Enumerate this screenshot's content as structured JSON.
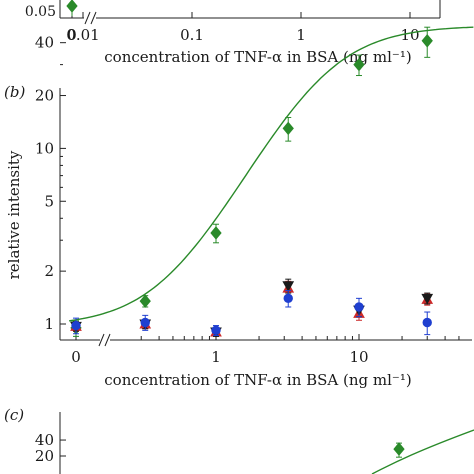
{
  "chart_data": [
    {
      "panel": "a",
      "type": "scatter",
      "xlabel": "concentration of TNF-α in BSA (ng ml⁻¹)",
      "ylabel": "",
      "xscale": "log with broken axis at zero",
      "yscale": "log",
      "xticks": [
        "0",
        "0.01",
        "0.1",
        "1",
        "10"
      ],
      "yticks": [
        "0.05"
      ],
      "series": [
        {
          "color": "#2a8a2a",
          "marker": "diamond",
          "points": [
            {
              "x": 0,
              "y": 0.05
            }
          ]
        }
      ]
    },
    {
      "panel": "b",
      "panel_label": "(b)",
      "type": "scatter",
      "xlabel": "concentration of TNF-α in BSA (ng ml⁻¹)",
      "ylabel": "relative intensity",
      "xscale": "log with broken axis at zero",
      "yscale": "log",
      "xticks": [
        "0",
        "1",
        "10"
      ],
      "yticks": [
        "1",
        "2",
        "5",
        "10",
        "20",
        "40"
      ],
      "ylim": [
        0.85,
        55
      ],
      "grid": false,
      "legend": "none",
      "series": [
        {
          "color": "#2a8a2a",
          "marker": "diamond",
          "fit": "sigmoid",
          "points": [
            {
              "x": 0,
              "y": 0.95,
              "err": 0.1
            },
            {
              "x": 0.32,
              "y": 1.35,
              "err": 0.1
            },
            {
              "x": 1,
              "y": 3.3,
              "err": 0.4
            },
            {
              "x": 3.2,
              "y": 13,
              "err": 2
            },
            {
              "x": 10,
              "y": 30,
              "err": 4
            },
            {
              "x": 30,
              "y": 41,
              "err": 8
            }
          ]
        },
        {
          "color": "#cc2a2a",
          "marker": "triangle-up",
          "points": [
            {
              "x": 0,
              "y": 0.97,
              "err": 0.06
            },
            {
              "x": 0.32,
              "y": 1.0,
              "err": 0.06
            },
            {
              "x": 1,
              "y": 0.9,
              "err": 0.05
            },
            {
              "x": 3.2,
              "y": 1.6,
              "err": 0.15
            },
            {
              "x": 10,
              "y": 1.15,
              "err": 0.1
            },
            {
              "x": 30,
              "y": 1.38,
              "err": 0.1
            }
          ]
        },
        {
          "color": "#1a1a1a",
          "marker": "triangle-down",
          "points": [
            {
              "x": 0,
              "y": 0.97,
              "err": 0.06
            },
            {
              "x": 0.32,
              "y": 1.0,
              "err": 0.06
            },
            {
              "x": 1,
              "y": 0.9,
              "err": 0.05
            },
            {
              "x": 3.2,
              "y": 1.65,
              "err": 0.15
            },
            {
              "x": 10,
              "y": 1.2,
              "err": 0.1
            },
            {
              "x": 30,
              "y": 1.4,
              "err": 0.1
            }
          ]
        },
        {
          "color": "#1f3fd0",
          "marker": "circle",
          "points": [
            {
              "x": 0,
              "y": 0.98,
              "err": 0.1
            },
            {
              "x": 0.32,
              "y": 1.02,
              "err": 0.1
            },
            {
              "x": 1,
              "y": 0.92,
              "err": 0.06
            },
            {
              "x": 3.2,
              "y": 1.4,
              "err": 0.15
            },
            {
              "x": 10,
              "y": 1.25,
              "err": 0.15
            },
            {
              "x": 30,
              "y": 1.02,
              "err": 0.15
            }
          ]
        }
      ]
    },
    {
      "panel": "c",
      "panel_label": "(c)",
      "type": "scatter",
      "yscale": "log",
      "yticks": [
        "20",
        "40"
      ],
      "series": [
        {
          "color": "#2a8a2a",
          "marker": "diamond",
          "fit": "sigmoid",
          "points": [
            {
              "x": 10,
              "y": 27,
              "err": 8
            }
          ]
        }
      ]
    }
  ]
}
